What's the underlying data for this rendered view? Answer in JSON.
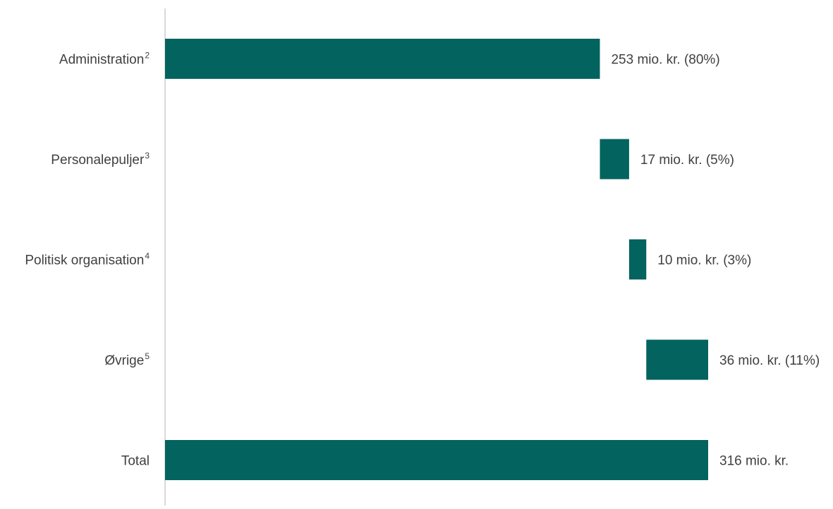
{
  "chart_data": {
    "type": "bar",
    "subtype": "waterfall-horizontal",
    "orientation": "horizontal",
    "unit": "mio. kr.",
    "title": "",
    "xlabel": "",
    "ylabel": "",
    "xlim": [
      0,
      316
    ],
    "grid": false,
    "legend": "none",
    "bar_color": "#03635F",
    "axis_color": "#D9D9D9",
    "text_color": "#404040",
    "categories": [
      {
        "label": "Administration",
        "sup": "2",
        "value": 253,
        "start": 0,
        "data_label": "253 mio. kr. (80%)"
      },
      {
        "label": "Personalepuljer",
        "sup": "3",
        "value": 17,
        "start": 253,
        "data_label": "17 mio. kr. (5%)"
      },
      {
        "label": "Politisk organisation",
        "sup": "4",
        "value": 10,
        "start": 270,
        "data_label": "10 mio. kr. (3%)"
      },
      {
        "label": "Øvrige",
        "sup": "5",
        "value": 36,
        "start": 280,
        "data_label": "36 mio. kr. (11%)"
      },
      {
        "label": "Total",
        "sup": "",
        "value": 316,
        "start": 0,
        "data_label": "316 mio. kr."
      }
    ]
  }
}
